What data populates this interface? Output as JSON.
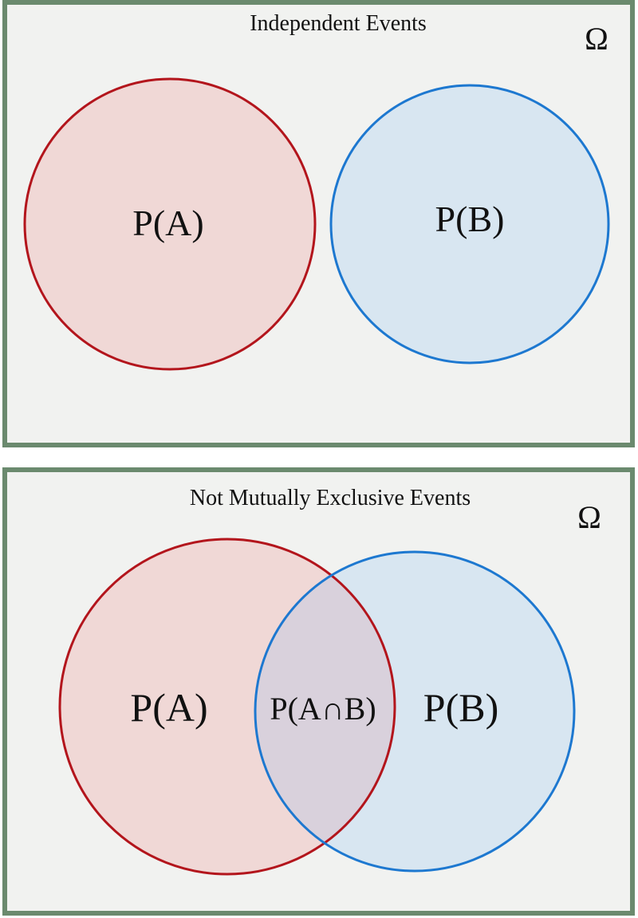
{
  "panels": [
    {
      "title": "Independent Events",
      "sample_space_symbol": "Ω",
      "labels": {
        "a": "P(A)",
        "b": "P(B)"
      }
    },
    {
      "title": "Not Mutually Exclusive Events",
      "sample_space_symbol": "Ω",
      "labels": {
        "a": "P(A)",
        "intersection": "P(A∩B)",
        "b": "P(B)"
      }
    }
  ],
  "colors": {
    "panel_border": "#6b8a6e",
    "panel_fill": "#f1f2f0",
    "set_a_stroke": "#b3151c",
    "set_a_fill": "#f0d8d6",
    "set_b_stroke": "#1d78d0",
    "set_b_fill": "#d8e6f1",
    "intersection_fill": "#d9d1dc"
  }
}
